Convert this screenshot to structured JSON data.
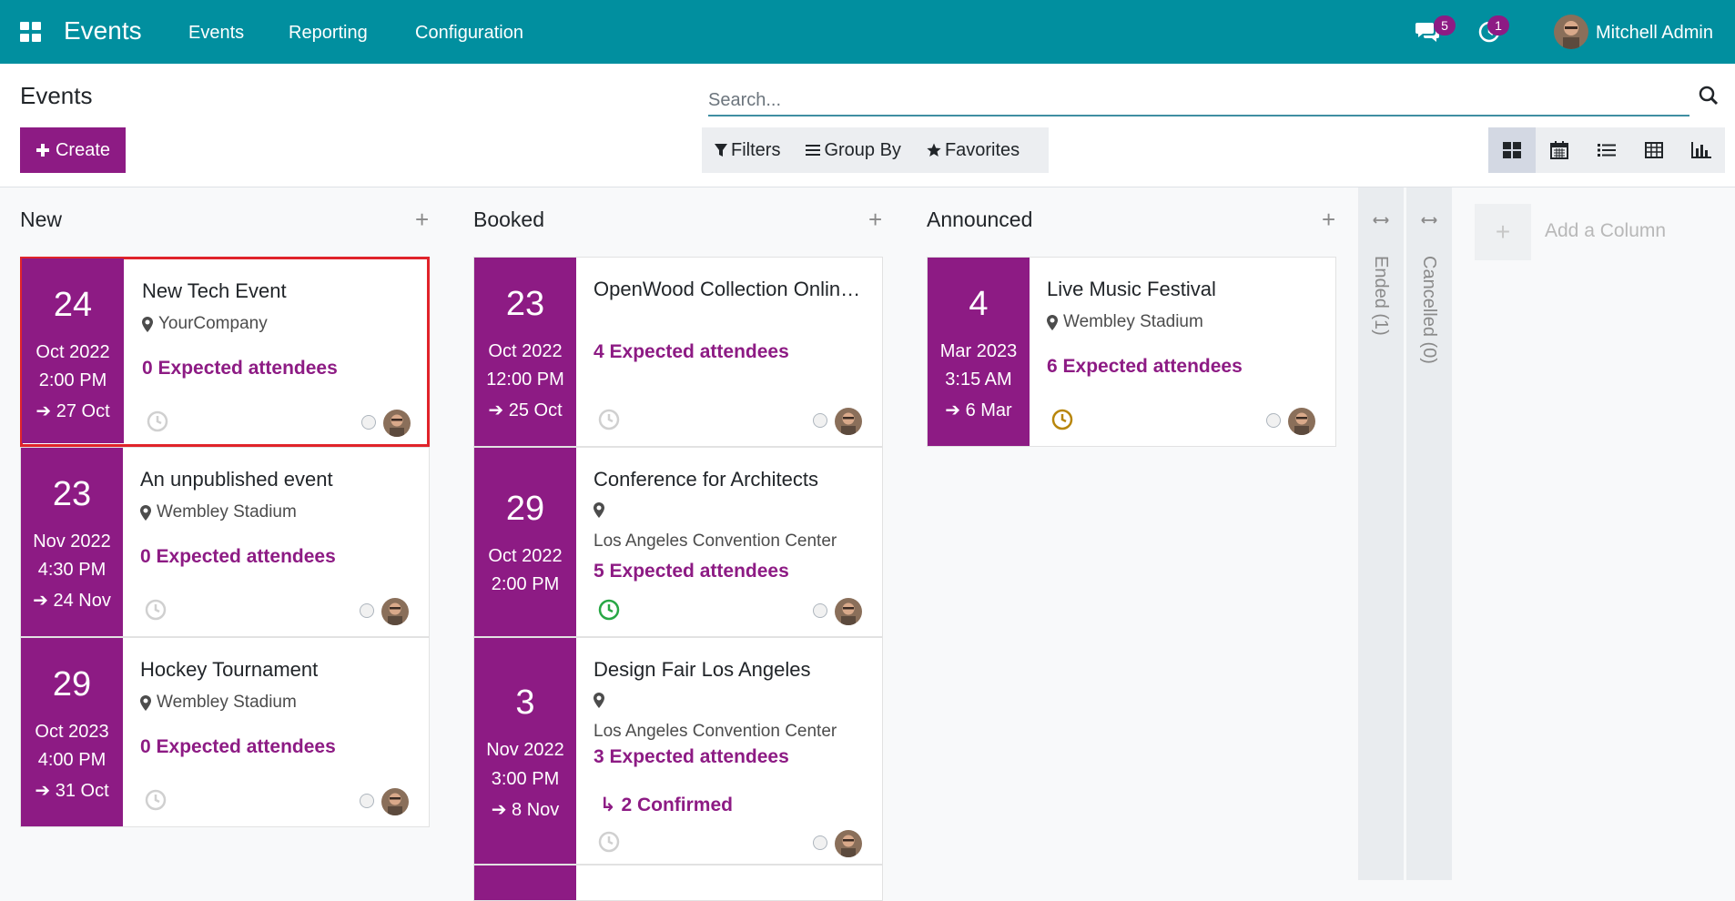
{
  "navbar": {
    "brand": "Events",
    "menu": [
      "Events",
      "Reporting",
      "Configuration"
    ],
    "messages_badge": "5",
    "activities_badge": "1",
    "user_name": "Mitchell Admin"
  },
  "control": {
    "title": "Events",
    "create_label": "Create",
    "search_placeholder": "Search...",
    "filters_label": "Filters",
    "groupby_label": "Group By",
    "favorites_label": "Favorites",
    "views": [
      "kanban-icon",
      "calendar-icon",
      "list-icon",
      "pivot-icon",
      "graph-icon"
    ]
  },
  "columns": {
    "new": {
      "title": "New",
      "cards": [
        {
          "day": "24",
          "month": "Oct 2022",
          "time": "2:00 PM",
          "end": "27 Oct",
          "title": "New Tech Event",
          "location": "YourCompany",
          "attendees": "0 Expected attendees",
          "clock": "grey"
        },
        {
          "day": "23",
          "month": "Nov 2022",
          "time": "4:30 PM",
          "end": "24 Nov",
          "title": "An unpublished event",
          "location": "Wembley Stadium",
          "attendees": "0 Expected attendees",
          "clock": "grey"
        },
        {
          "day": "29",
          "month": "Oct 2023",
          "time": "4:00 PM",
          "end": "31 Oct",
          "title": "Hockey Tournament",
          "location": "Wembley Stadium",
          "attendees": "0 Expected attendees",
          "clock": "grey"
        }
      ]
    },
    "booked": {
      "title": "Booked",
      "cards": [
        {
          "day": "23",
          "month": "Oct 2022",
          "time": "12:00 PM",
          "end": "25 Oct",
          "title": "OpenWood Collection Online Reveal",
          "attendees": "4 Expected attendees",
          "clock": "grey"
        },
        {
          "day": "29",
          "month": "Oct 2022",
          "time": "2:00 PM",
          "title": "Conference for Architects",
          "location": "Los Angeles Convention Center",
          "attendees": "5 Expected attendees",
          "clock": "green"
        },
        {
          "day": "3",
          "month": "Nov 2022",
          "time": "3:00 PM",
          "end": "8 Nov",
          "title": "Design Fair Los Angeles",
          "location": "Los Angeles Convention Center",
          "attendees": "3 Expected attendees",
          "confirmed": "2 Confirmed",
          "clock": "grey"
        }
      ]
    },
    "announced": {
      "title": "Announced",
      "cards": [
        {
          "day": "4",
          "month": "Mar 2023",
          "time": "3:15 AM",
          "end": "6 Mar",
          "title": "Live Music Festival",
          "location": "Wembley Stadium",
          "attendees": "6 Expected attendees",
          "clock": "orange"
        }
      ]
    },
    "ended": {
      "title": "Ended (1)"
    },
    "cancelled": {
      "title": "Cancelled (0)"
    }
  },
  "add_column_label": "Add a Column",
  "colors": {
    "navbar": "#018f9f",
    "primary": "#8d1b84",
    "selection": "#e0232a"
  }
}
